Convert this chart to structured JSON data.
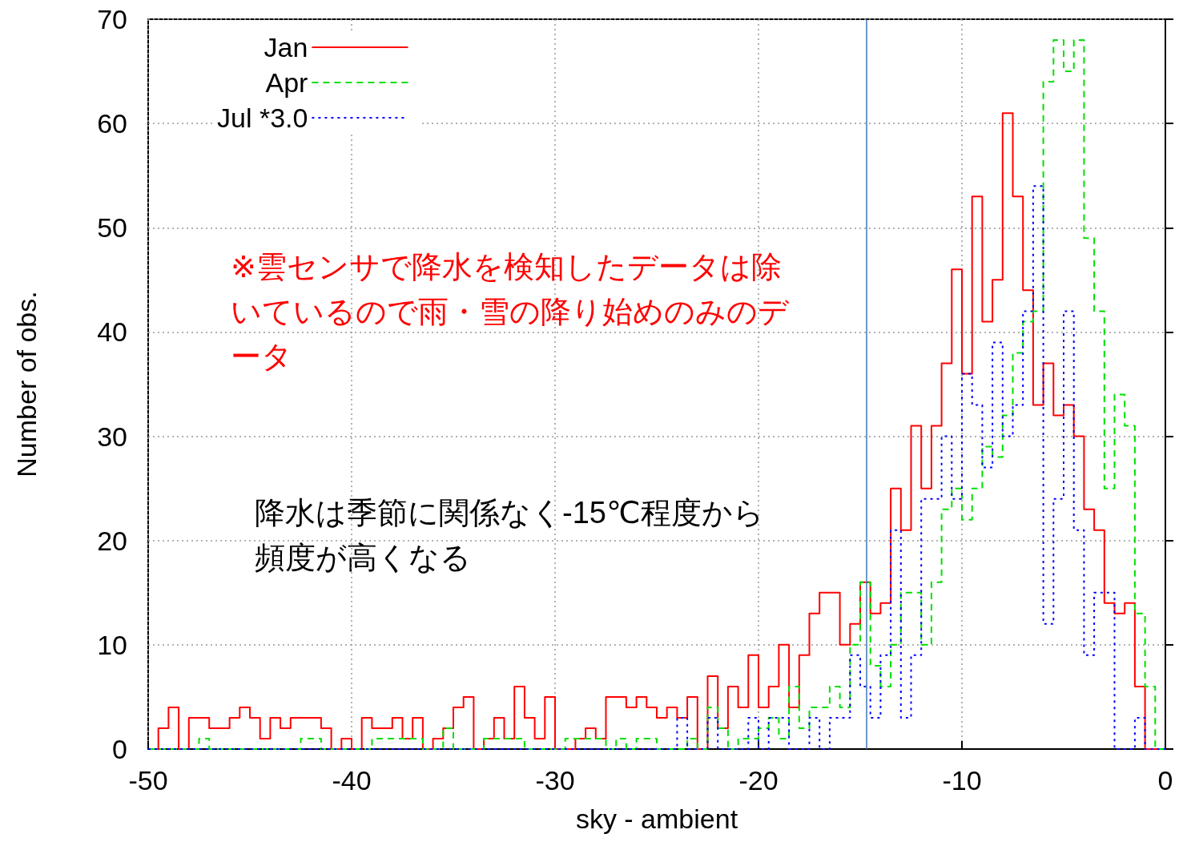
{
  "chart_data": {
    "type": "histogram",
    "xlabel": "sky - ambient",
    "ylabel": "Number of obs.",
    "bins": [
      -50,
      -49.5,
      -49,
      -48.5,
      -48,
      -47.5,
      -47,
      -46.5,
      -46,
      -45.5,
      -45,
      -44.5,
      -44,
      -43.5,
      -43,
      -42.5,
      -42,
      -41.5,
      -41,
      -40.5,
      -40,
      -39.5,
      -39,
      -38.5,
      -38,
      -37.5,
      -37,
      -36.5,
      -36,
      -35.5,
      -35,
      -34.5,
      -34,
      -33.5,
      -33,
      -32.5,
      -32,
      -31.5,
      -31,
      -30.5,
      -30,
      -29.5,
      -29,
      -28.5,
      -28,
      -27.5,
      -27,
      -26.5,
      -26,
      -25.5,
      -25,
      -24.5,
      -24,
      -23.5,
      -23,
      -22.5,
      -22,
      -21.5,
      -21,
      -20.5,
      -20,
      -19.5,
      -19,
      -18.5,
      -18,
      -17.5,
      -17,
      -16.5,
      -16,
      -15.5,
      -15,
      -14.5,
      -14,
      -13.5,
      -13,
      -12.5,
      -12,
      -11.5,
      -11,
      -10.5,
      -10,
      -9.5,
      -9,
      -8.5,
      -8,
      -7.5,
      -7,
      -6.5,
      -6,
      -5.5,
      -5,
      -4.5,
      -4,
      -3.5,
      -3,
      -2.5,
      -2,
      -1.5,
      -1,
      -0.5,
      0
    ],
    "series": [
      {
        "name": "Jan",
        "color": "#ff0000",
        "line_style": "solid",
        "values": [
          0,
          2,
          4,
          0,
          3,
          3,
          2,
          2,
          3,
          4,
          3,
          1,
          3,
          2,
          3,
          3,
          3,
          2,
          0,
          1,
          0,
          3,
          2,
          2,
          3,
          1,
          3,
          0,
          1,
          2,
          4,
          5,
          0,
          1,
          3,
          1,
          6,
          3,
          1,
          5,
          0,
          0,
          1,
          2,
          1,
          5,
          5,
          4,
          5,
          4,
          3,
          4,
          3,
          5,
          0,
          7,
          2,
          6,
          4,
          9,
          4,
          6,
          10,
          4,
          9,
          13,
          15,
          15,
          10,
          12,
          16,
          13,
          14,
          25,
          21,
          31,
          25,
          31,
          37,
          46,
          36,
          53,
          41,
          45,
          61,
          53,
          44,
          33,
          37,
          32,
          33,
          30,
          23,
          21,
          14,
          13,
          14,
          6,
          0,
          0
        ]
      },
      {
        "name": "Apr",
        "color": "#00e000",
        "line_style": "dashed",
        "values": [
          0,
          0,
          0,
          0,
          0,
          1,
          0,
          0,
          0,
          0,
          0,
          0,
          0,
          0,
          0,
          1,
          1,
          0,
          0,
          0,
          0,
          0,
          1,
          1,
          1,
          1,
          1,
          0,
          0,
          2,
          0,
          0,
          0,
          1,
          1,
          1,
          1,
          0,
          0,
          0,
          0,
          1,
          1,
          1,
          1,
          0,
          1,
          0,
          1,
          1,
          0,
          0,
          0,
          1,
          0,
          4,
          2,
          0,
          1,
          1,
          2,
          3,
          1,
          6,
          2,
          4,
          4,
          6,
          4,
          10,
          16,
          8,
          6,
          10,
          15,
          15,
          10,
          16,
          23,
          25,
          22,
          25,
          29,
          28,
          32,
          38,
          41,
          42,
          64,
          68,
          65,
          68,
          49,
          42,
          25,
          34,
          31,
          13,
          6,
          0
        ]
      },
      {
        "name": "Jul *3.0",
        "color": "#0000ff",
        "line_style": "dotted",
        "values": [
          0,
          0,
          0,
          0,
          0,
          0,
          0,
          0,
          0,
          0,
          0,
          0,
          0,
          0,
          0,
          0,
          0,
          0,
          0,
          0,
          0,
          0,
          0,
          0,
          0,
          0,
          0,
          0,
          0,
          0,
          0,
          0,
          0,
          0,
          0,
          0,
          0,
          0,
          0,
          0,
          0,
          0,
          0,
          0,
          0,
          0,
          0,
          0,
          0,
          0,
          0,
          0,
          3,
          0,
          0,
          3,
          0,
          0,
          0,
          3,
          0,
          3,
          3,
          0,
          0,
          3,
          0,
          3,
          3,
          9,
          6,
          3,
          9,
          21,
          3,
          9,
          24,
          24,
          30,
          24,
          36,
          33,
          27,
          39,
          30,
          33,
          42,
          54,
          12,
          24,
          42,
          21,
          9,
          15,
          15,
          0,
          0,
          3,
          0,
          0
        ]
      }
    ],
    "xlim": [
      -50,
      0
    ],
    "xticks": [
      -50,
      -40,
      -30,
      -20,
      -10,
      0
    ],
    "ylim": [
      0,
      70
    ],
    "yticks": [
      0,
      10,
      20,
      30,
      40,
      50,
      60,
      70
    ],
    "grid": true,
    "legend": "top left",
    "marker": "none",
    "ref_lines": [
      {
        "axis": "x",
        "value": -14.7,
        "color": "#3c78b4"
      }
    ],
    "annotations": [
      "※雲センサで降水を検知したデータは除いているので雨・雪の降り始めのみのデータ",
      "降水は季節に関係なく-15℃程度から頻度が高くなる"
    ]
  }
}
